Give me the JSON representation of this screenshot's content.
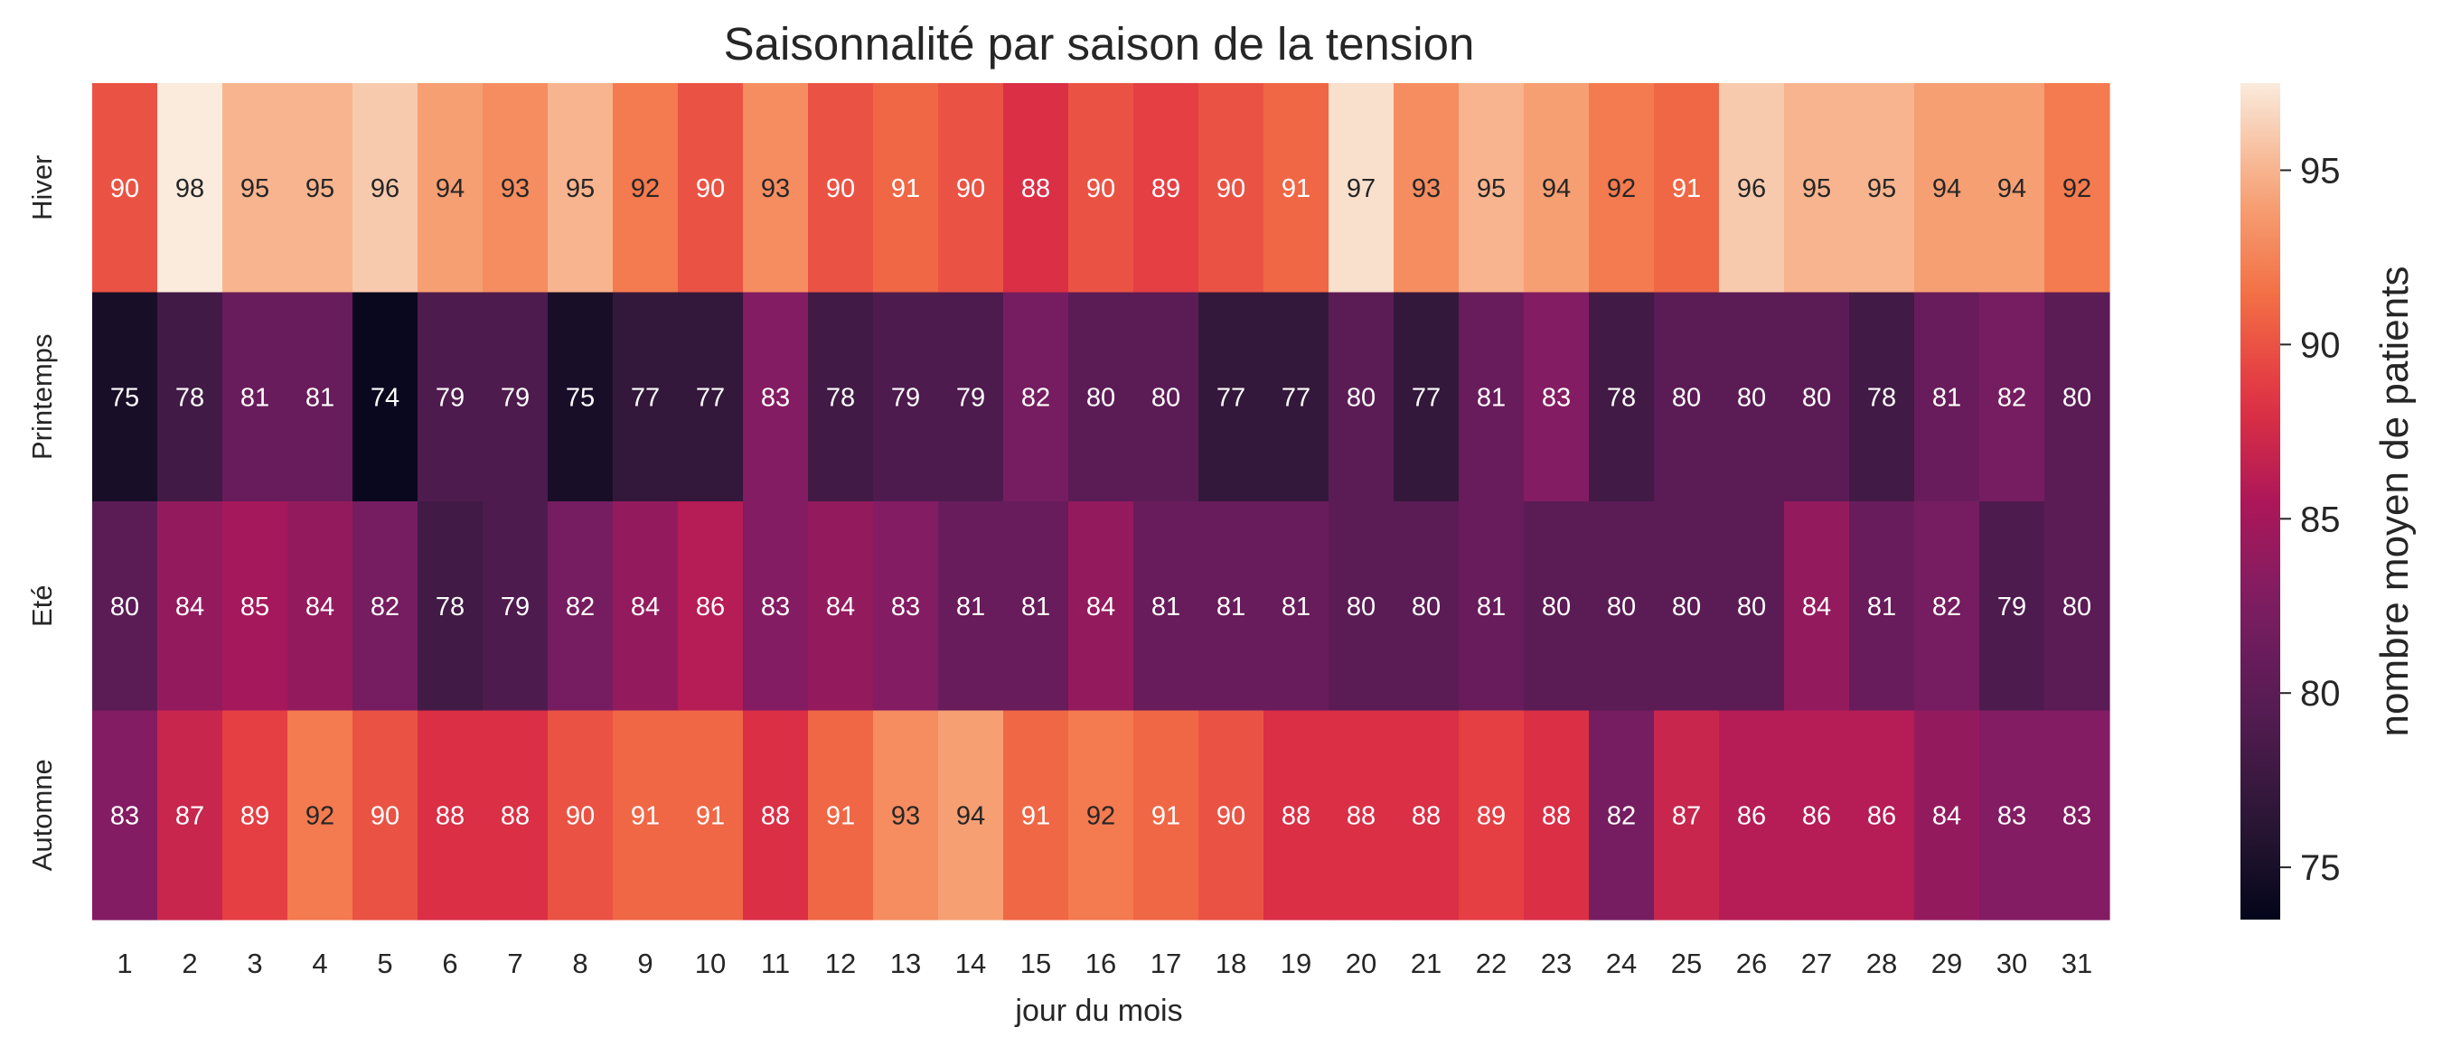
{
  "chart_data": {
    "type": "heatmap",
    "title": "Saisonnalité par saison de la tension",
    "xlabel": "jour du mois",
    "ylabel": "",
    "colorbar_label": "nombre moyen de patients",
    "colormap": "rocket",
    "vmin": 73.5,
    "vmax": 97.5,
    "colorbar_ticks": [
      75,
      80,
      85,
      90,
      95
    ],
    "x_categories": [
      "1",
      "2",
      "3",
      "4",
      "5",
      "6",
      "7",
      "8",
      "9",
      "10",
      "11",
      "12",
      "13",
      "14",
      "15",
      "16",
      "17",
      "18",
      "19",
      "20",
      "21",
      "22",
      "23",
      "24",
      "25",
      "26",
      "27",
      "28",
      "29",
      "30",
      "31"
    ],
    "y_categories": [
      "Hiver",
      "Printemps",
      "Eté",
      "Automne"
    ],
    "values": [
      [
        90,
        98,
        95,
        95,
        96,
        94,
        93,
        95,
        92,
        90,
        93,
        90,
        91,
        90,
        88,
        90,
        89,
        90,
        91,
        97,
        93,
        95,
        94,
        92,
        91,
        96,
        95,
        95,
        94,
        94,
        92
      ],
      [
        75,
        78,
        81,
        81,
        74,
        79,
        79,
        75,
        77,
        77,
        83,
        78,
        79,
        79,
        82,
        80,
        80,
        77,
        77,
        80,
        77,
        81,
        83,
        78,
        80,
        80,
        80,
        78,
        81,
        82,
        80
      ],
      [
        80,
        84,
        85,
        84,
        82,
        78,
        79,
        82,
        84,
        86,
        83,
        84,
        83,
        81,
        81,
        84,
        81,
        81,
        81,
        80,
        80,
        81,
        80,
        80,
        80,
        80,
        84,
        81,
        82,
        79,
        80
      ],
      [
        83,
        87,
        89,
        92,
        90,
        88,
        88,
        90,
        91,
        91,
        88,
        91,
        93,
        94,
        91,
        92,
        91,
        90,
        88,
        88,
        88,
        89,
        88,
        82,
        87,
        86,
        86,
        86,
        84,
        83,
        83
      ]
    ]
  }
}
